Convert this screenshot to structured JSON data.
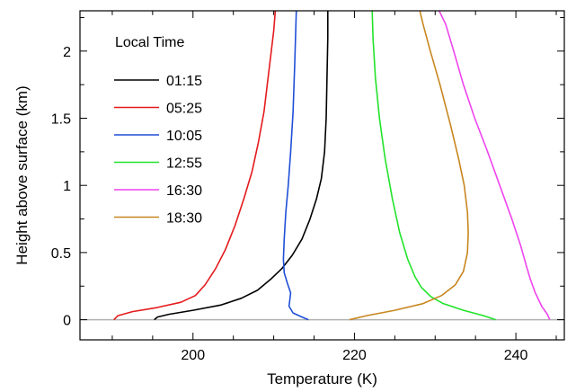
{
  "chart_data": {
    "type": "line",
    "title": "",
    "xlabel": "Temperature (K)",
    "ylabel": "Height above surface (km)",
    "xlim": [
      186,
      246
    ],
    "ylim": [
      -0.15,
      2.3
    ],
    "xticks": [
      200,
      220,
      240
    ],
    "yticks": [
      0,
      0.5,
      1,
      1.5,
      2
    ],
    "ytick_labels": [
      "0",
      "0.5",
      "1",
      "1.5",
      "2"
    ],
    "grid": false,
    "surface_line": {
      "y": 0,
      "color": "#b0b0b0"
    },
    "legend": {
      "title": "Local Time",
      "placement": "top-left"
    },
    "series": [
      {
        "name": "01:15",
        "color": "#000000",
        "x": [
          195.2,
          195.6,
          197.0,
          200.0,
          203.5,
          206.0,
          208.0,
          209.6,
          211.0,
          212.3,
          213.5,
          214.5,
          215.3,
          215.9,
          216.3,
          216.5,
          216.6,
          216.7,
          216.7
        ],
        "y": [
          0.0,
          0.02,
          0.04,
          0.07,
          0.11,
          0.16,
          0.22,
          0.3,
          0.38,
          0.48,
          0.6,
          0.75,
          0.9,
          1.05,
          1.25,
          1.5,
          1.8,
          2.1,
          2.3
        ]
      },
      {
        "name": "05:25",
        "color": "#e41a1c",
        "x": [
          190.2,
          190.7,
          192.5,
          195.5,
          198.5,
          200.3,
          201.5,
          202.8,
          204.0,
          205.2,
          206.3,
          207.3,
          208.1,
          208.8,
          209.3,
          209.7,
          210.0,
          210.2
        ],
        "y": [
          0.0,
          0.03,
          0.06,
          0.09,
          0.13,
          0.18,
          0.26,
          0.38,
          0.52,
          0.7,
          0.9,
          1.1,
          1.32,
          1.55,
          1.8,
          2.0,
          2.15,
          2.3
        ]
      },
      {
        "name": "10:05",
        "color": "#1f4fd8",
        "x": [
          214.3,
          213.5,
          212.4,
          211.9,
          212.0,
          212.1,
          211.7,
          211.3,
          211.2,
          211.3,
          211.5,
          211.8,
          212.1,
          212.4,
          212.6,
          212.8
        ],
        "y": [
          0.0,
          0.02,
          0.05,
          0.1,
          0.15,
          0.2,
          0.27,
          0.35,
          0.45,
          0.6,
          0.8,
          1.0,
          1.25,
          1.55,
          1.9,
          2.3
        ]
      },
      {
        "name": "12:55",
        "color": "#22e32a",
        "x": [
          237.5,
          236.0,
          233.5,
          231.0,
          229.5,
          228.3,
          227.5,
          226.6,
          225.6,
          224.7,
          223.8,
          223.1,
          222.6,
          222.3,
          222.2
        ],
        "y": [
          0.0,
          0.03,
          0.07,
          0.12,
          0.17,
          0.24,
          0.32,
          0.45,
          0.65,
          0.9,
          1.2,
          1.5,
          1.8,
          2.1,
          2.3
        ]
      },
      {
        "name": "16:30",
        "color": "#ee44ee",
        "x": [
          244.2,
          243.9,
          243.2,
          242.4,
          241.8,
          241.3,
          240.6,
          239.5,
          238.0,
          236.5,
          234.9,
          233.5,
          232.3,
          231.3,
          230.5
        ],
        "y": [
          0.0,
          0.04,
          0.1,
          0.2,
          0.3,
          0.4,
          0.55,
          0.75,
          1.0,
          1.25,
          1.5,
          1.75,
          2.0,
          2.2,
          2.3
        ]
      },
      {
        "name": "18:30",
        "color": "#c8861f",
        "x": [
          219.4,
          221.5,
          225.0,
          228.5,
          230.8,
          232.5,
          233.5,
          234.0,
          234.1,
          234.0,
          233.6,
          232.9,
          231.9,
          230.6,
          229.4,
          228.5,
          228.1
        ],
        "y": [
          0.0,
          0.03,
          0.07,
          0.12,
          0.18,
          0.26,
          0.36,
          0.5,
          0.65,
          0.8,
          1.0,
          1.2,
          1.45,
          1.75,
          2.0,
          2.2,
          2.3
        ]
      }
    ]
  }
}
